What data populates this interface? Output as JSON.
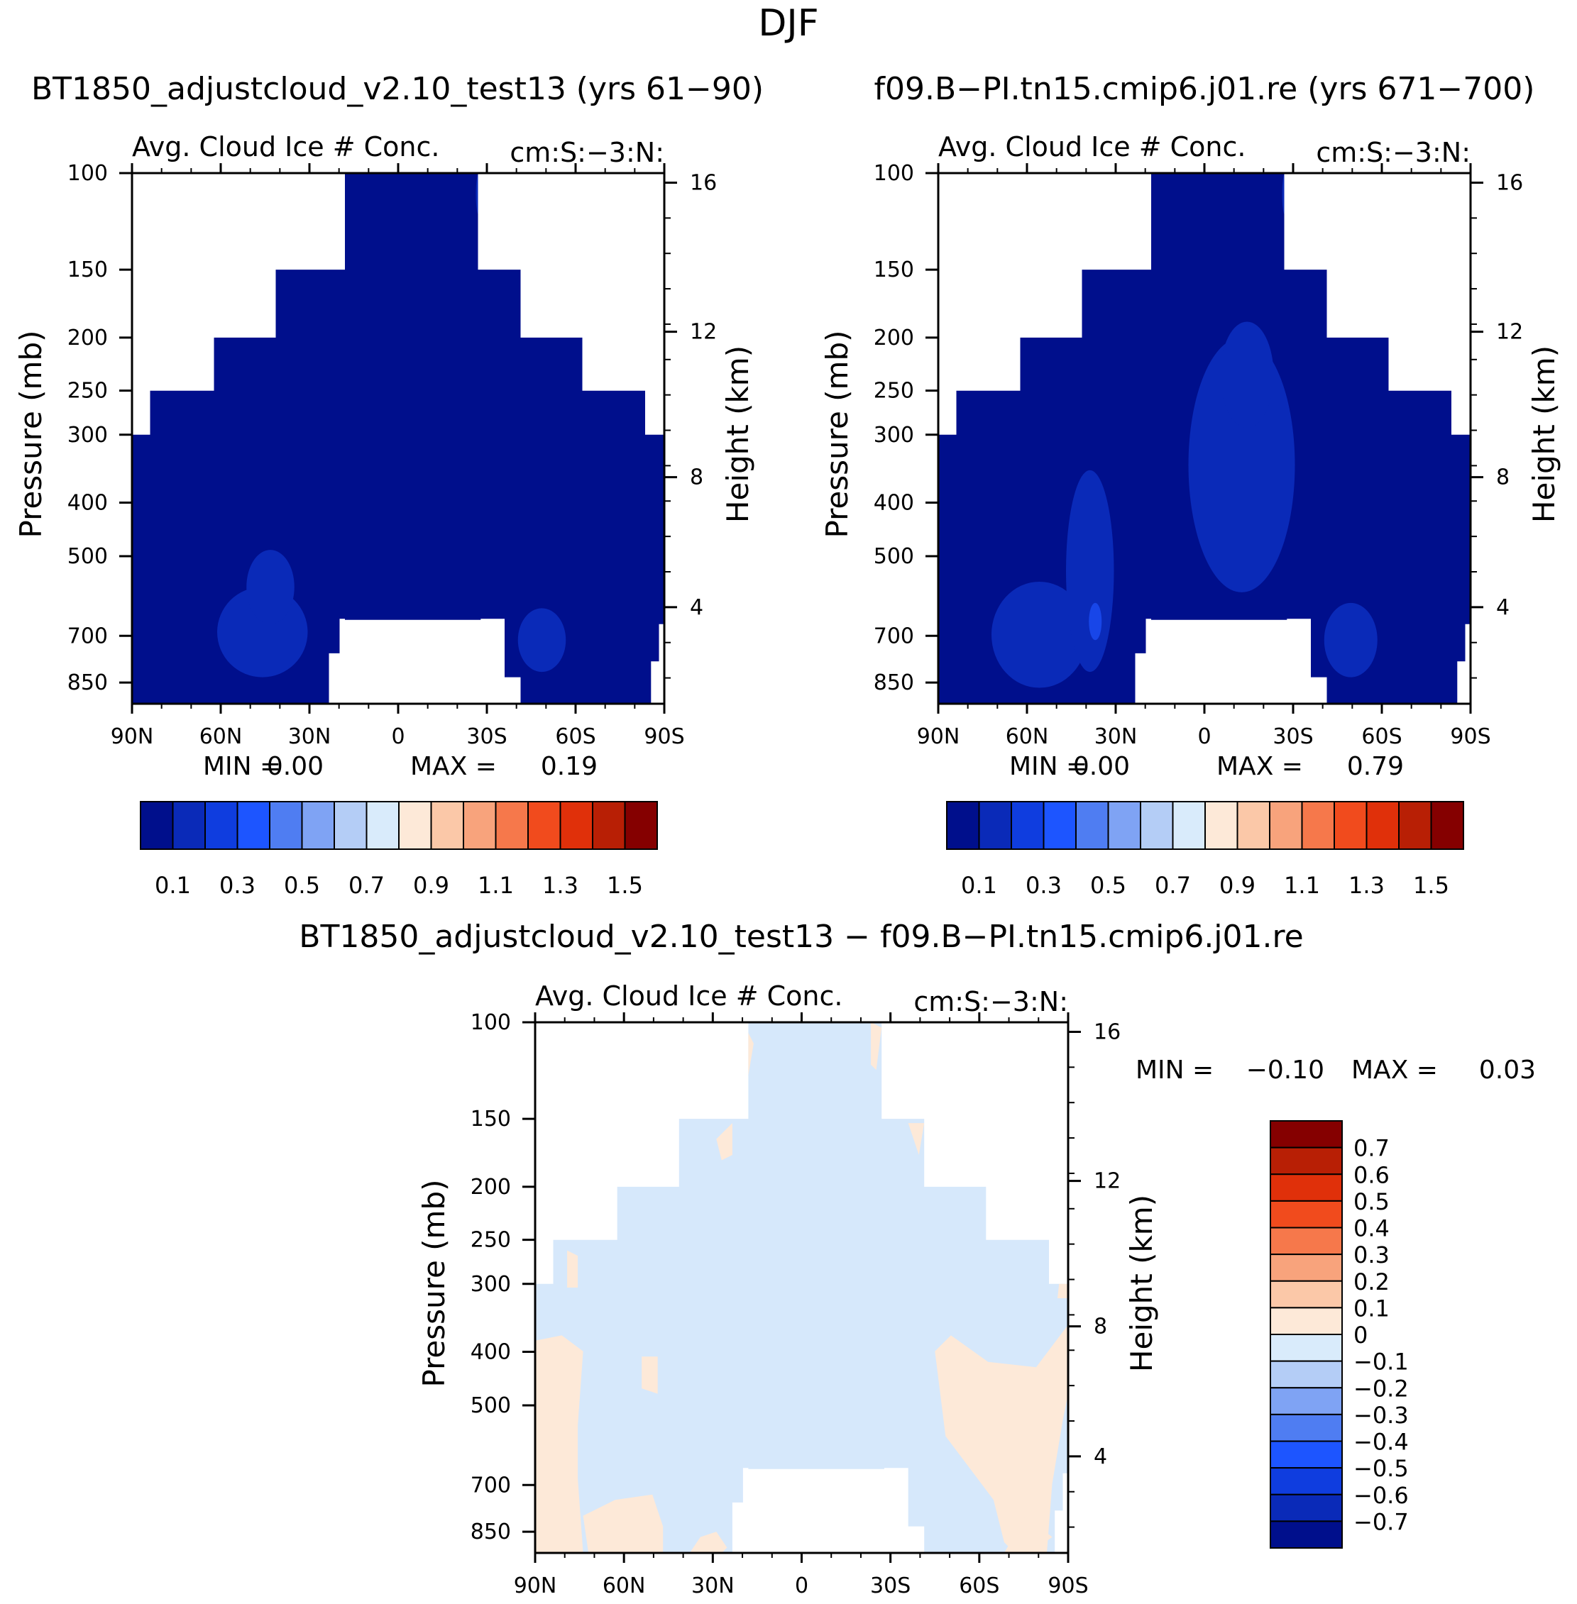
{
  "page_title": "DJF",
  "colors": {
    "deep_blue": "#000f8c",
    "mid_blue": "#0a2ab8",
    "bright_blue": "#1846e8",
    "light_blue": "#d6e8fb",
    "light_peach": "#fde9d8"
  },
  "chart_data": [
    {
      "type": "heatmap",
      "case_title": "BT1850_adjustcloud_v2.10_test13 (yrs 61−90)",
      "left_label": "Avg. Cloud Ice # Conc.",
      "right_label": "cm:S:−3:N:",
      "ylabel": "Pressure (mb)",
      "ylabel_right": "Height (km)",
      "x_ticks": [
        "90N",
        "60N",
        "30N",
        "0",
        "30S",
        "60S",
        "90S"
      ],
      "y_ticks": [
        "100",
        "150",
        "200",
        "250",
        "300",
        "400",
        "500",
        "700",
        "850"
      ],
      "y_right_ticks": [
        "16",
        "12",
        "8",
        "4"
      ],
      "min_label": "MIN =",
      "min_value": "0.00",
      "max_label": "MAX =",
      "max_value": "0.19",
      "colorbar_labels": [
        "0.1",
        "0.3",
        "0.5",
        "0.7",
        "0.9",
        "1.1",
        "1.3",
        "1.5"
      ]
    },
    {
      "type": "heatmap",
      "case_title": "f09.B−PI.tn15.cmip6.j01.re (yrs 671−700)",
      "left_label": "Avg. Cloud Ice # Conc.",
      "right_label": "cm:S:−3:N:",
      "ylabel": "Pressure (mb)",
      "ylabel_right": "Height (km)",
      "x_ticks": [
        "90N",
        "60N",
        "30N",
        "0",
        "30S",
        "60S",
        "90S"
      ],
      "y_ticks": [
        "100",
        "150",
        "200",
        "250",
        "300",
        "400",
        "500",
        "700",
        "850"
      ],
      "y_right_ticks": [
        "16",
        "12",
        "8",
        "4"
      ],
      "min_label": "MIN =",
      "min_value": "0.00",
      "max_label": "MAX =",
      "max_value": "0.79",
      "colorbar_labels": [
        "0.1",
        "0.3",
        "0.5",
        "0.7",
        "0.9",
        "1.1",
        "1.3",
        "1.5"
      ]
    },
    {
      "type": "heatmap",
      "case_title": "BT1850_adjustcloud_v2.10_test13 − f09.B−PI.tn15.cmip6.j01.re",
      "left_label": "Avg. Cloud Ice # Conc.",
      "right_label": "cm:S:−3:N:",
      "ylabel": "Pressure (mb)",
      "ylabel_right": "Height (km)",
      "x_ticks": [
        "90N",
        "60N",
        "30N",
        "0",
        "30S",
        "60S",
        "90S"
      ],
      "y_ticks": [
        "100",
        "150",
        "200",
        "250",
        "300",
        "400",
        "500",
        "700",
        "850"
      ],
      "y_right_ticks": [
        "16",
        "12",
        "8",
        "4"
      ],
      "min_label": "MIN =",
      "min_value": "−0.10",
      "max_label": "MAX =",
      "max_value": "0.03",
      "colorbar_labels": [
        "0.7",
        "0.6",
        "0.5",
        "0.4",
        "0.3",
        "0.2",
        "0.1",
        "0",
        "−0.1",
        "−0.2",
        "−0.3",
        "−0.4",
        "−0.5",
        "−0.6",
        "−0.7"
      ]
    }
  ],
  "colorbar_seq": [
    "#000f8c",
    "#0a2ab8",
    "#0f3ddf",
    "#1d55ff",
    "#4f7df2",
    "#7fa3f4",
    "#b4cdf6",
    "#d9ebfb",
    "#fde9d8",
    "#fbc8a8",
    "#f8a37c",
    "#f6784b",
    "#f14b1d",
    "#e0300a",
    "#b81f05",
    "#850000"
  ],
  "colorbar_div": [
    "#850000",
    "#b81f05",
    "#e0300a",
    "#f14b1d",
    "#f6784b",
    "#f8a37c",
    "#fbc8a8",
    "#fde9d8",
    "#d9ebfb",
    "#b4cdf6",
    "#7fa3f4",
    "#4f7df2",
    "#1d55ff",
    "#0f3ddf",
    "#0a2ab8",
    "#000f8c"
  ]
}
